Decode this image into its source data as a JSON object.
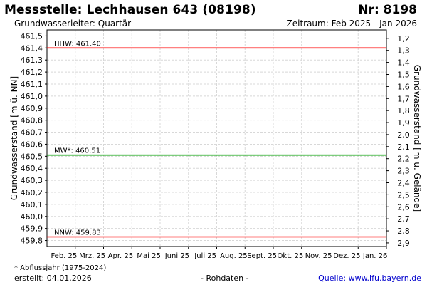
{
  "header": {
    "title": "Messstelle: Lechhausen 643 (08198)",
    "number": "Nr: 8198",
    "aquifer": "Grundwasserleiter: Quartär",
    "period": "Zeitraum: Feb 2025 - Jan 2026"
  },
  "footer": {
    "note": "* Abflussjahr (1975-2024)",
    "created": "erstellt:  04.01.2026",
    "raw": "- Rohdaten -",
    "source": "Quelle: www.lfu.bayern.de"
  },
  "colors": {
    "hhw": "#ff0000",
    "mw": "#00a000",
    "nnw": "#ff0000",
    "grid": "#d8d8d8"
  },
  "chart_data": {
    "type": "line",
    "ylabel_left": "Grundwasserstand [m ü. NN]",
    "ylabel_right": "Grundwasserstand [m u. Gelände]",
    "ylim": [
      459.75,
      461.55
    ],
    "yticks_left": [
      "461,5",
      "461,4",
      "461,3",
      "461,2",
      "461,1",
      "461,0",
      "460,9",
      "460,8",
      "460,7",
      "460,6",
      "460,5",
      "460,4",
      "460,3",
      "460,2",
      "460,1",
      "460,0",
      "459,9",
      "459,8"
    ],
    "yticks_left_values": [
      461.5,
      461.4,
      461.3,
      461.2,
      461.1,
      461.0,
      460.9,
      460.8,
      460.7,
      460.6,
      460.5,
      460.4,
      460.3,
      460.2,
      460.1,
      460.0,
      459.9,
      459.8
    ],
    "yticks_right": [
      "1,2",
      "1,3",
      "1,4",
      "1,5",
      "1,6",
      "1,7",
      "1,8",
      "1,9",
      "2,0",
      "2,1",
      "2,2",
      "2,3",
      "2,4",
      "2,5",
      "2,6",
      "2,7",
      "2,8",
      "2,9"
    ],
    "yticks_right_values": [
      461.48,
      461.38,
      461.28,
      461.18,
      461.08,
      460.98,
      460.88,
      460.78,
      460.68,
      460.58,
      460.48,
      460.38,
      460.28,
      460.18,
      460.08,
      459.98,
      459.88,
      459.78
    ],
    "x_tick_labels": [
      "Feb. 25",
      "Mrz. 25",
      "Apr. 25",
      "Mai 25",
      "Juni 25",
      "Juli 25",
      "Aug. 25",
      "Sept. 25",
      "Okt. 25",
      "Nov. 25",
      "Dez. 25",
      "Jan. 26"
    ],
    "reference_lines": [
      {
        "name": "HHW",
        "label": "HHW: 461.40",
        "value": 461.4
      },
      {
        "name": "MW*",
        "label": "MW*: 460.51",
        "value": 460.51
      },
      {
        "name": "NNW",
        "label": "NNW: 459.83",
        "value": 459.83
      }
    ],
    "grid": true
  }
}
